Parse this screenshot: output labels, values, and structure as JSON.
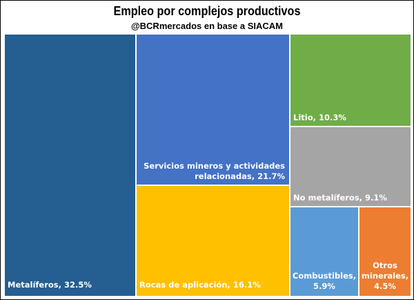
{
  "title": "Empleo por complejos productivos",
  "subtitle": "@BCRmercados en base a SIACAM",
  "chart_data": {
    "type": "treemap",
    "items": [
      {
        "name": "Metalíferos",
        "value": 32.5,
        "label": "Metalíferos, 32.5%",
        "color": "#255E91"
      },
      {
        "name": "Servicios mineros y actividades relacionadas",
        "value": 21.7,
        "label_line1": "Servicios mineros y actividades",
        "label_line2": "relacionadas, 21.7%",
        "color": "#4472C4"
      },
      {
        "name": "Rocas de aplicación",
        "value": 16.1,
        "label": "Rocas de aplicación, 16.1%",
        "color": "#FFC000"
      },
      {
        "name": "Litio",
        "value": 10.3,
        "label": "Litio, 10.3%",
        "color": "#70AD47"
      },
      {
        "name": "No metalíferos",
        "value": 9.1,
        "label": "No metalíferos, 9.1%",
        "color": "#A5A5A5"
      },
      {
        "name": "Combustibles",
        "value": 5.9,
        "label_line1": "Combustibles,",
        "label_line2": "5.9%",
        "color": "#5B9BD5"
      },
      {
        "name": "Otros minerales",
        "value": 4.5,
        "label_line1": "Otros",
        "label_line2": "minerales,",
        "label_line3": "4.5%",
        "color": "#ED7D31"
      }
    ]
  }
}
